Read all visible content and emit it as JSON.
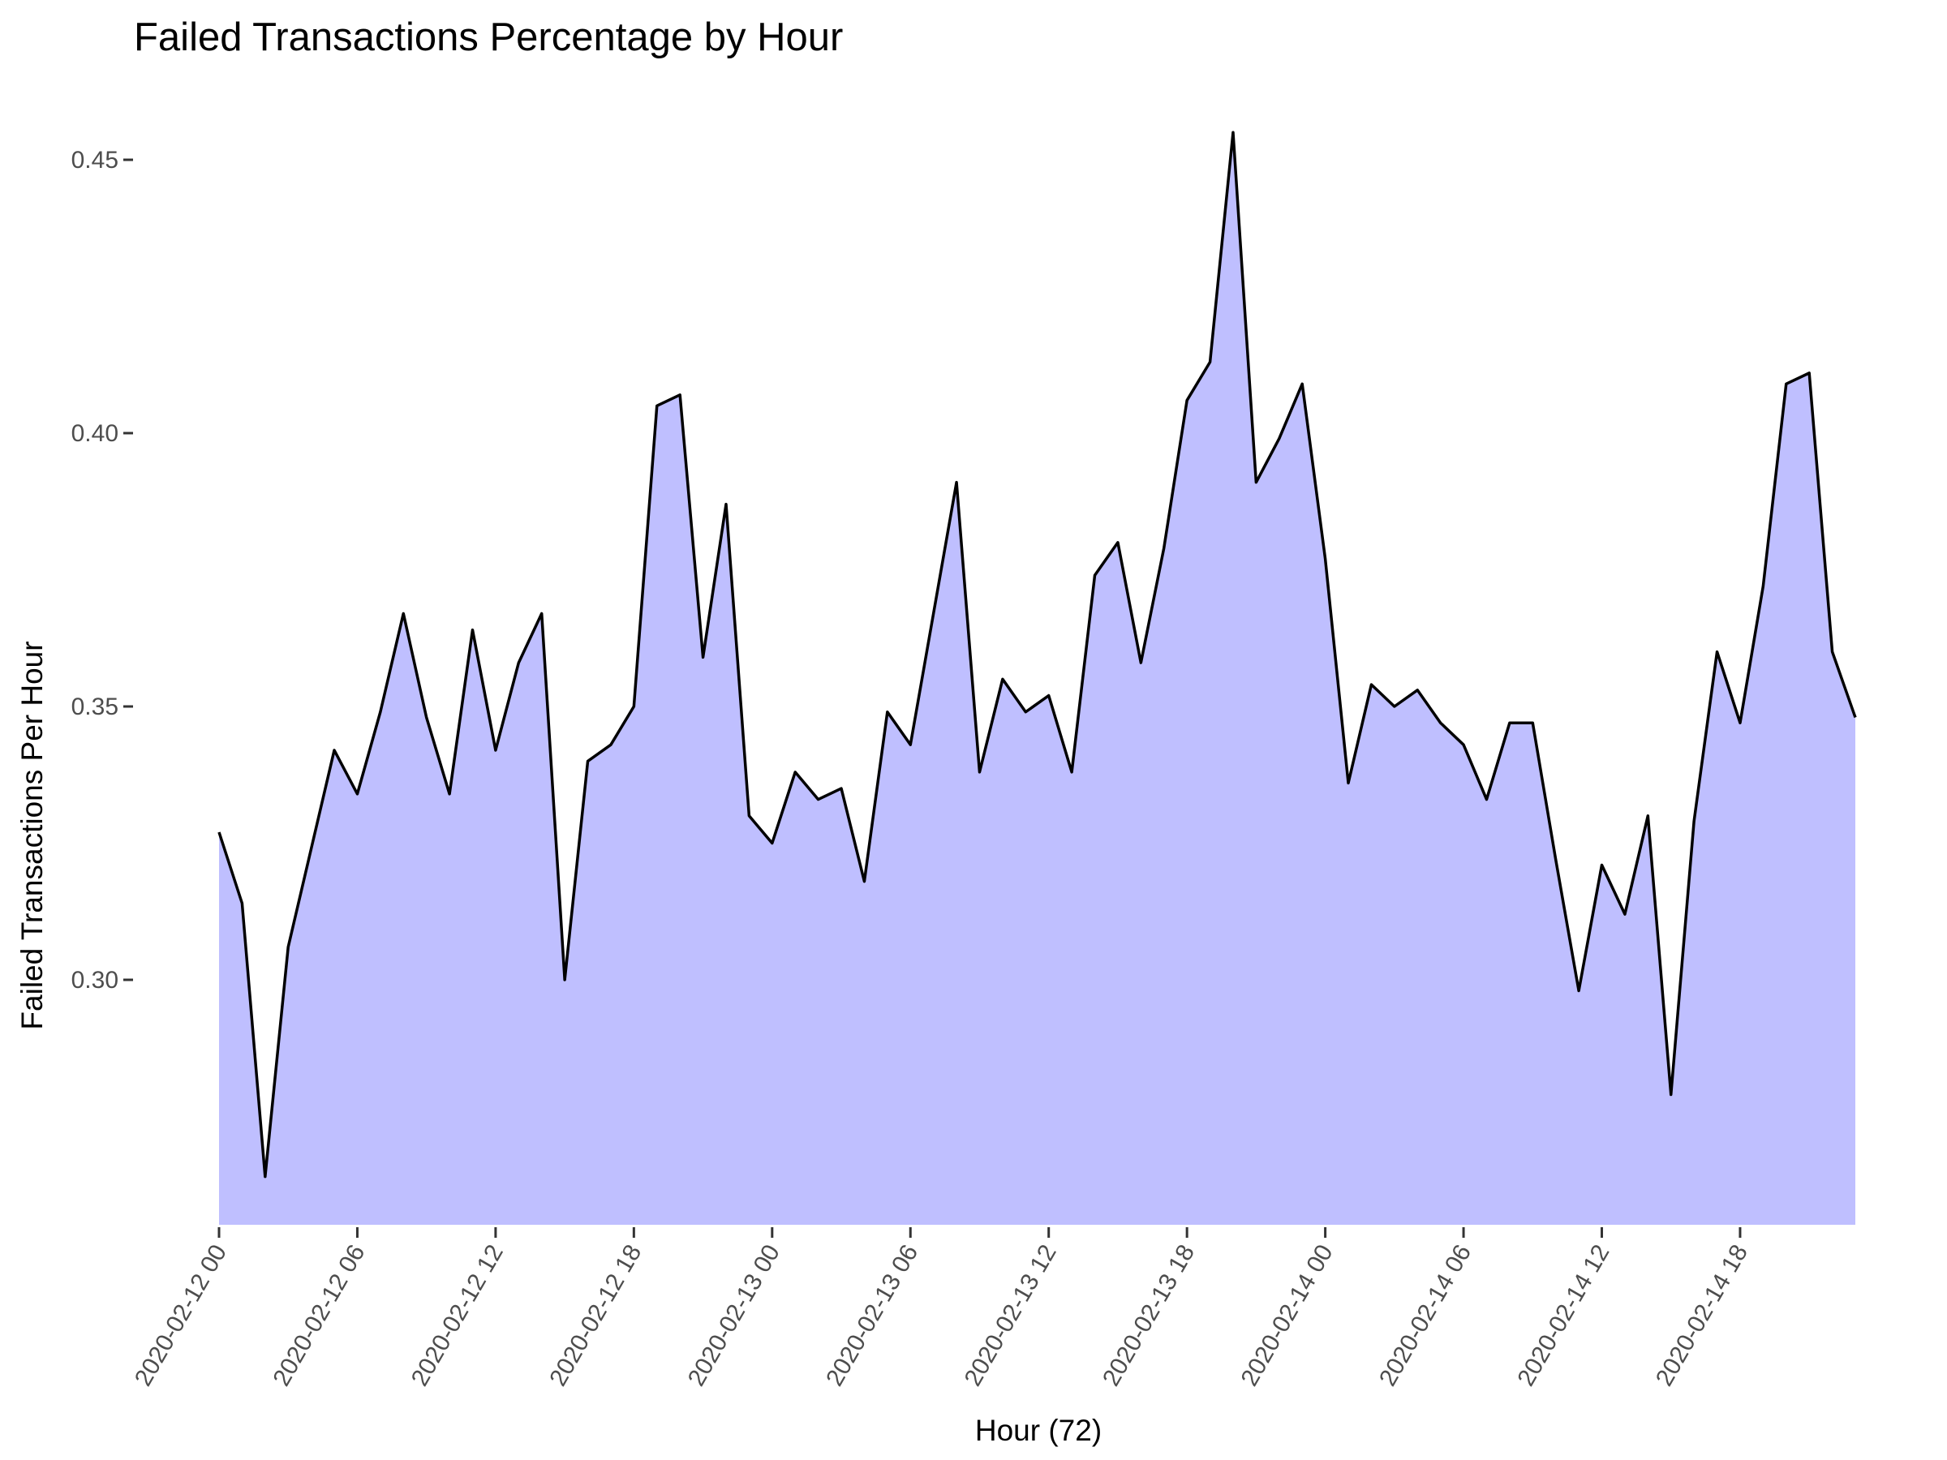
{
  "chart_data": {
    "type": "area",
    "title": "Failed Transactions Percentage by Hour",
    "xlabel": "Hour (72)",
    "ylabel": "Failed Transactions Per Hour",
    "x_start": "2020-02-12 00",
    "x_step_hours": 1,
    "x_tick_labels": [
      "2020-02-12 00",
      "2020-02-12 06",
      "2020-02-12 12",
      "2020-02-12 18",
      "2020-02-13 00",
      "2020-02-13 06",
      "2020-02-13 12",
      "2020-02-13 18",
      "2020-02-14 00",
      "2020-02-14 06",
      "2020-02-14 12",
      "2020-02-14 18"
    ],
    "y_ticks": [
      "0.30",
      "0.35",
      "0.40",
      "0.45"
    ],
    "ylim": [
      0.255,
      0.46
    ],
    "grid": false,
    "legend": "none",
    "fill_color": "#BFBFFF",
    "line_color": "#000000",
    "values": [
      0.327,
      0.314,
      0.264,
      0.306,
      0.324,
      0.342,
      0.334,
      0.349,
      0.367,
      0.348,
      0.334,
      0.364,
      0.342,
      0.358,
      0.367,
      0.3,
      0.34,
      0.343,
      0.35,
      0.405,
      0.407,
      0.359,
      0.387,
      0.33,
      0.325,
      0.338,
      0.333,
      0.335,
      0.318,
      0.349,
      0.343,
      0.367,
      0.391,
      0.338,
      0.355,
      0.349,
      0.352,
      0.338,
      0.374,
      0.38,
      0.358,
      0.379,
      0.406,
      0.413,
      0.455,
      0.391,
      0.399,
      0.409,
      0.377,
      0.336,
      0.354,
      0.35,
      0.353,
      0.347,
      0.343,
      0.333,
      0.347,
      0.347,
      0.322,
      0.298,
      0.321,
      0.312,
      0.33,
      0.279,
      0.329,
      0.36,
      0.347,
      0.372,
      0.409,
      0.411,
      0.36,
      0.348
    ]
  }
}
